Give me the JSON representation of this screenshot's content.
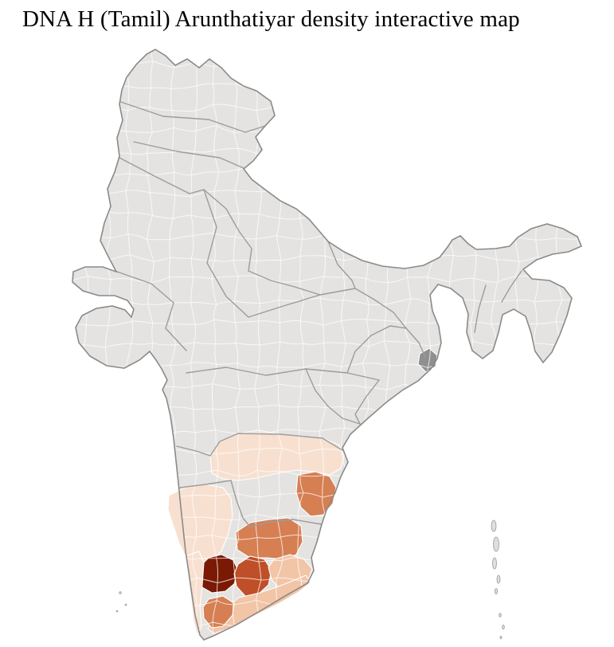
{
  "page": {
    "title": "DNA H (Tamil) Arunthatiyar density interactive map",
    "background": "#ffffff"
  },
  "map": {
    "name": "india-districts-choropleth",
    "subject": "DNA H (Tamil) Arunthatiyar density",
    "colors": {
      "base_fill": "#e4e3e1",
      "district_border": "#ffffff",
      "state_border": "#9c9c9c",
      "outline": "#8a8a8a",
      "no_data_district": "#8f8f8f",
      "island_fill": "#dedede",
      "island_stroke": "#9a9a9a"
    },
    "density_scale": [
      {
        "level": "none",
        "color": "#e4e3e1"
      },
      {
        "level": "very-low",
        "color": "#f8e0d0"
      },
      {
        "level": "low",
        "color": "#f2c5a7"
      },
      {
        "level": "medium",
        "color": "#d57f53"
      },
      {
        "level": "high",
        "color": "#bf4f28"
      },
      {
        "level": "very-high",
        "color": "#7a1a04"
      }
    ],
    "regions": [
      {
        "id": "south-andhra-band",
        "level": 1
      },
      {
        "id": "coastal-andhra-district",
        "level": 3
      },
      {
        "id": "south-karnataka",
        "level": 1
      },
      {
        "id": "north-tamilnadu",
        "level": 3
      },
      {
        "id": "west-tamilnadu-core",
        "level": 5
      },
      {
        "id": "central-tamilnadu",
        "level": 4
      },
      {
        "id": "east-tamilnadu",
        "level": 2
      },
      {
        "id": "kerala-coast-strip",
        "level": 1
      },
      {
        "id": "southeast-tamilnadu",
        "level": 2
      },
      {
        "id": "south-tamilnadu-tip",
        "level": 3
      },
      {
        "id": "bengal-delta-district",
        "level": "no-data"
      }
    ]
  }
}
